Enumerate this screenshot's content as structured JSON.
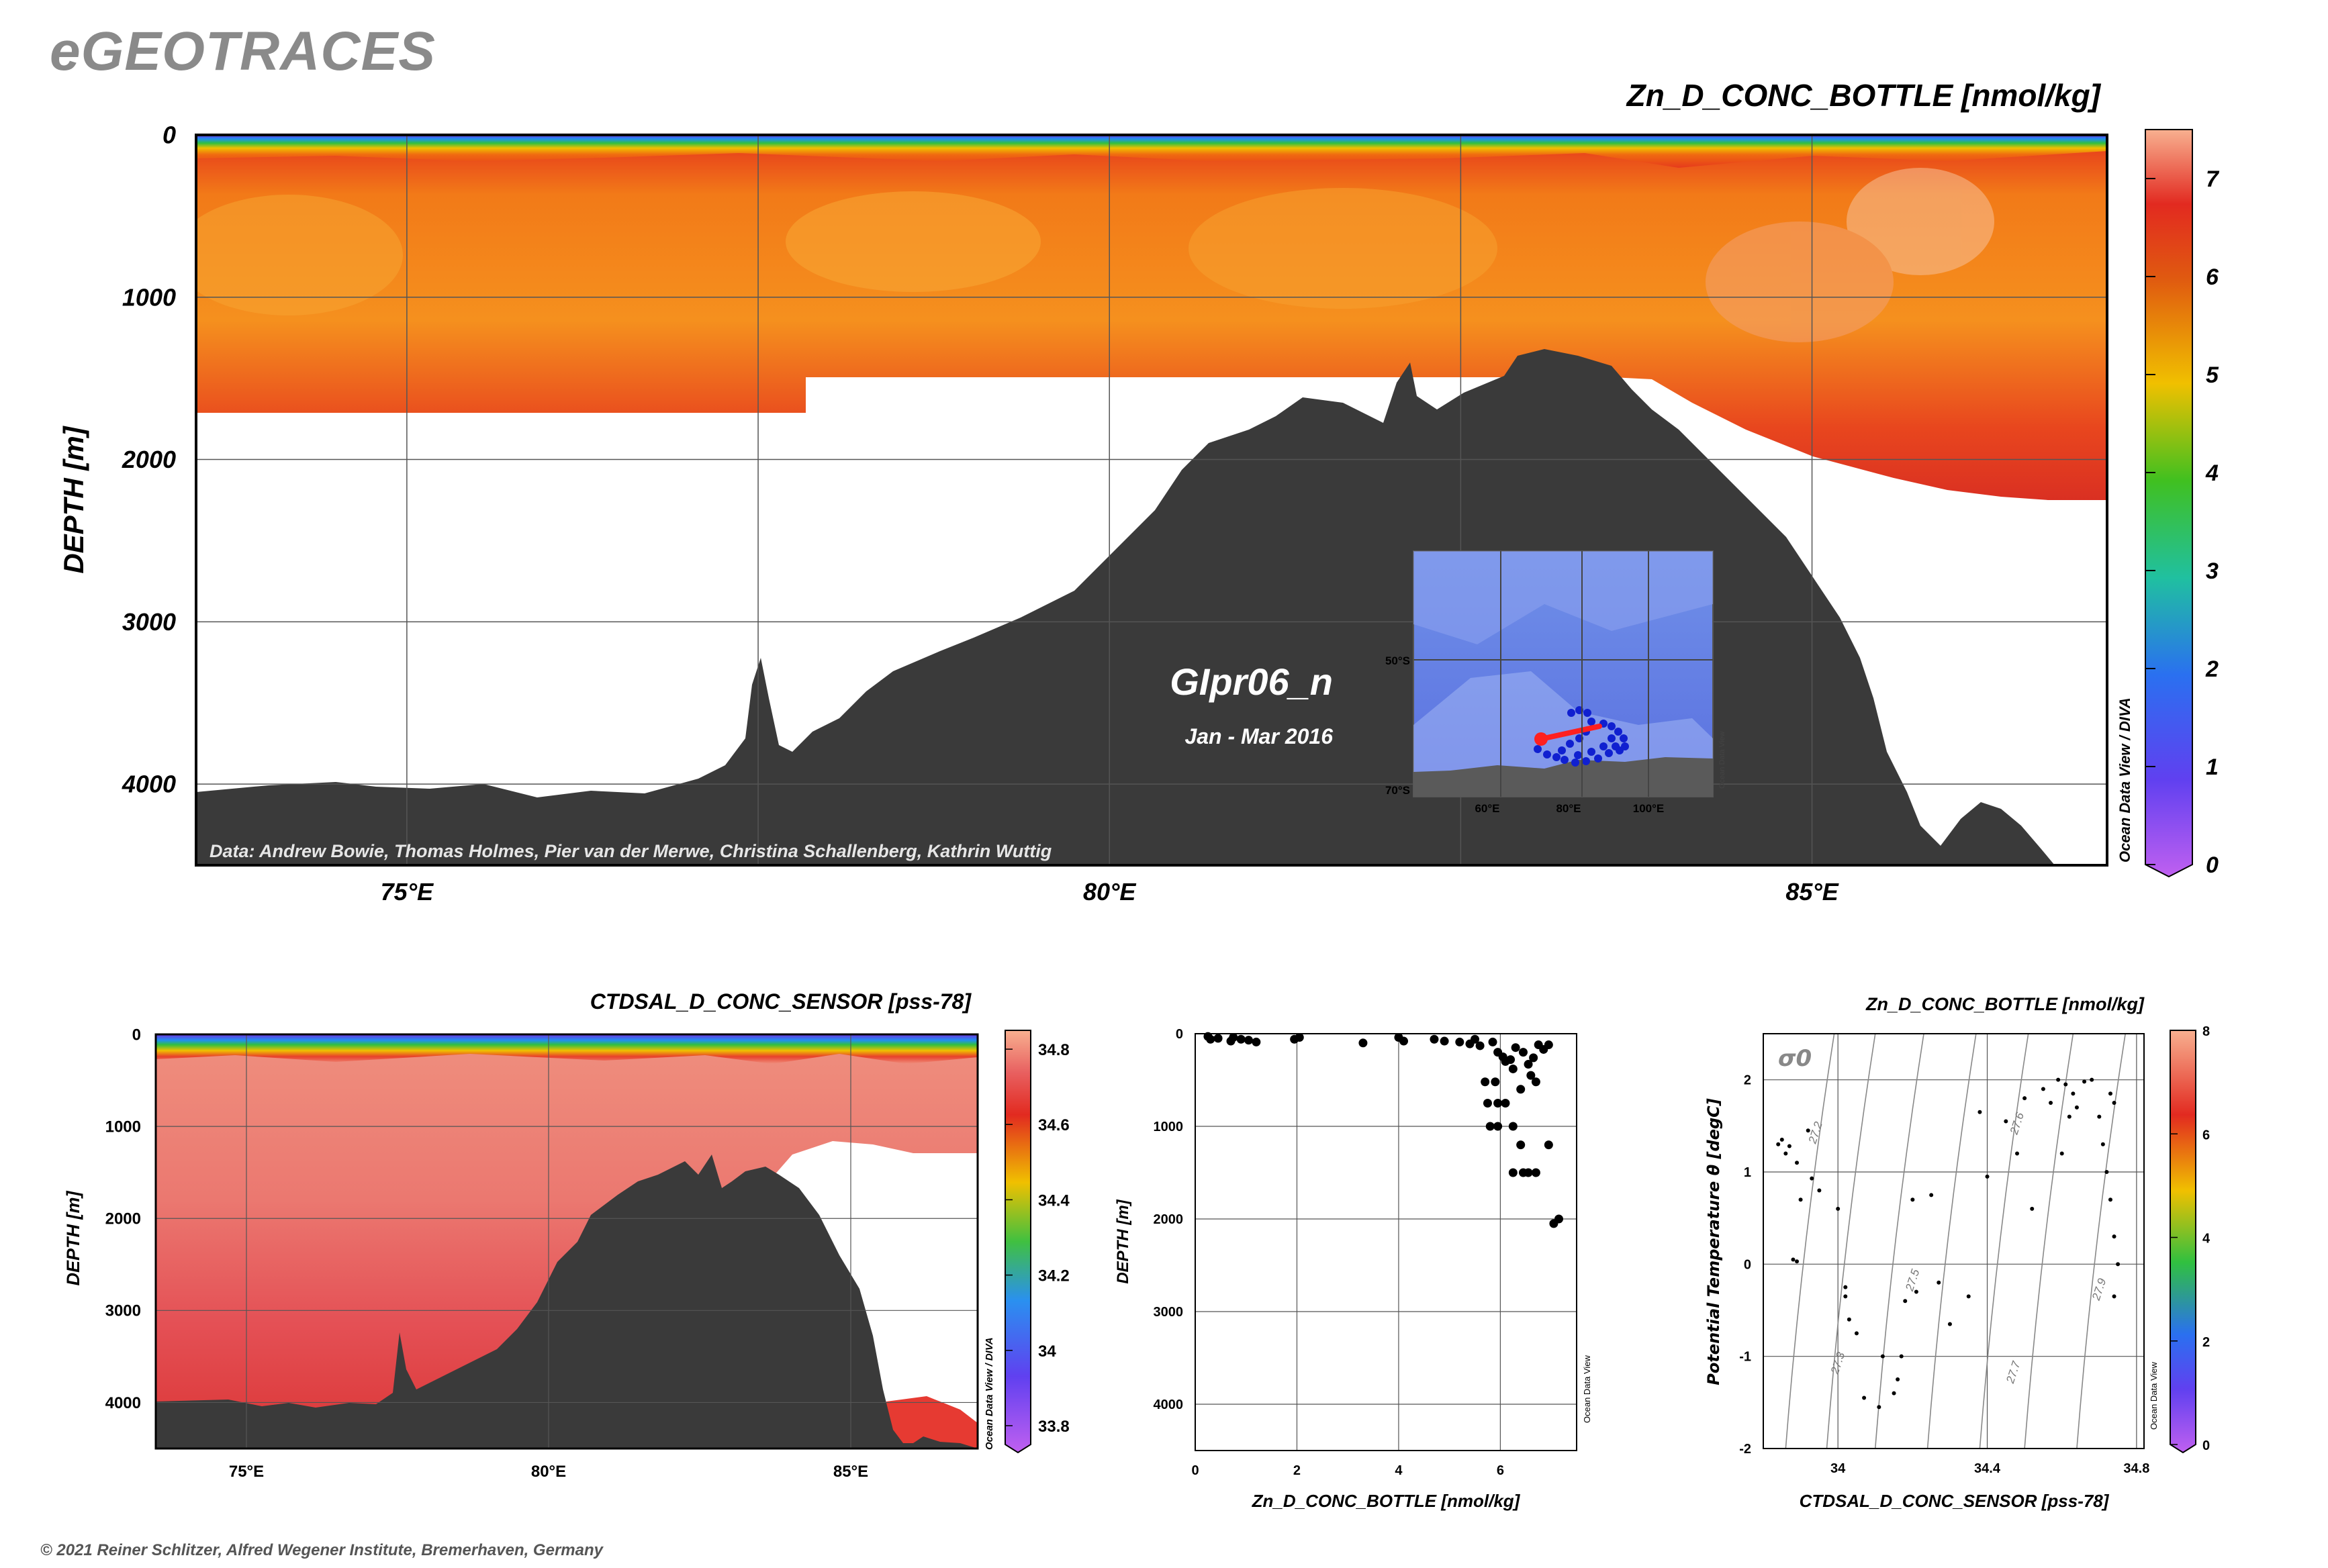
{
  "app_title": "eGEOTRACES",
  "copyright": "© 2021 Reiner Schlitzer, Alfred Wegener Institute, Bremerhaven, Germany",
  "chart_data": [
    {
      "type": "heatmap",
      "title": "Zn_D_CONC_BOTTLE [nmol/kg]",
      "ylabel": "DEPTH [m]",
      "xlabel": "",
      "x_ticks": [
        "75°E",
        "80°E",
        "85°E"
      ],
      "y_ticks": [
        "0",
        "1000",
        "2000",
        "3000",
        "4000"
      ],
      "xlim": [
        73.5,
        87.1
      ],
      "ylim": [
        4500,
        0
      ],
      "grid": true,
      "cruise_label": "GIpr06_n",
      "period_label": "Jan - Mar 2016",
      "data_credit": "Data: Andrew Bowie, Thomas Holmes, Pier van der Merwe, Christina Schallenberg, Kathrin Wuttig",
      "watermark": "Ocean Data View / DIVA",
      "colorbar": {
        "ticks": [
          "0",
          "1",
          "2",
          "3",
          "4",
          "5",
          "6",
          "7"
        ],
        "range": [
          0,
          7.5
        ]
      },
      "inset_map": {
        "lat_labels": [
          "50°S",
          "70°S"
        ],
        "lon_labels": [
          "60°E",
          "80°E",
          "100°E"
        ],
        "station_color": "#1020d0",
        "section_color": "#ff2020",
        "watermark": "Ocean Data View"
      }
    },
    {
      "type": "heatmap",
      "title": "CTDSAL_D_CONC_SENSOR [pss-78]",
      "ylabel": "DEPTH [m]",
      "x_ticks": [
        "75°E",
        "80°E",
        "85°E"
      ],
      "y_ticks": [
        "0",
        "1000",
        "2000",
        "3000",
        "4000"
      ],
      "xlim": [
        73.5,
        87.1
      ],
      "ylim": [
        4500,
        0
      ],
      "watermark": "Ocean Data View / DIVA",
      "colorbar": {
        "ticks": [
          "34.8",
          "34.6",
          "34.4",
          "34.2",
          "34",
          "33.8"
        ],
        "range": [
          33.75,
          34.85
        ]
      }
    },
    {
      "type": "scatter",
      "xlabel": "Zn_D_CONC_BOTTLE [nmol/kg]",
      "ylabel": "DEPTH [m]",
      "x_ticks": [
        "0",
        "2",
        "4",
        "6"
      ],
      "y_ticks": [
        "0",
        "1000",
        "2000",
        "3000",
        "4000"
      ],
      "xlim": [
        0,
        7.5
      ],
      "ylim": [
        4500,
        0
      ],
      "watermark": "Ocean Data View",
      "points": [
        [
          0.25,
          30
        ],
        [
          0.3,
          60
        ],
        [
          0.45,
          50
        ],
        [
          0.7,
          80
        ],
        [
          0.75,
          40
        ],
        [
          0.9,
          60
        ],
        [
          1.05,
          70
        ],
        [
          1.2,
          90
        ],
        [
          1.95,
          60
        ],
        [
          2.05,
          40
        ],
        [
          3.3,
          100
        ],
        [
          4.0,
          40
        ],
        [
          4.1,
          80
        ],
        [
          4.7,
          60
        ],
        [
          4.9,
          80
        ],
        [
          5.2,
          90
        ],
        [
          5.4,
          110
        ],
        [
          5.5,
          60
        ],
        [
          5.6,
          130
        ],
        [
          5.85,
          90
        ],
        [
          5.95,
          200
        ],
        [
          6.05,
          250
        ],
        [
          6.1,
          300
        ],
        [
          6.2,
          280
        ],
        [
          6.25,
          380
        ],
        [
          6.3,
          150
        ],
        [
          6.45,
          200
        ],
        [
          6.55,
          330
        ],
        [
          6.65,
          260
        ],
        [
          6.75,
          120
        ],
        [
          6.85,
          170
        ],
        [
          6.95,
          120
        ],
        [
          6.6,
          450
        ],
        [
          6.7,
          520
        ],
        [
          6.4,
          600
        ],
        [
          5.7,
          520
        ],
        [
          5.9,
          520
        ],
        [
          5.75,
          750
        ],
        [
          5.95,
          750
        ],
        [
          5.8,
          1000
        ],
        [
          5.95,
          1000
        ],
        [
          6.1,
          750
        ],
        [
          6.25,
          1000
        ],
        [
          6.4,
          1200
        ],
        [
          6.95,
          1200
        ],
        [
          6.45,
          1500
        ],
        [
          6.55,
          1500
        ],
        [
          6.25,
          1500
        ],
        [
          6.7,
          1500
        ],
        [
          7.05,
          2050
        ],
        [
          7.15,
          2000
        ]
      ]
    },
    {
      "type": "scatter",
      "title": "Zn_D_CONC_BOTTLE [nmol/kg]",
      "xlabel": "CTDSAL_D_CONC_SENSOR [pss-78]",
      "ylabel": "Potential Temperature θ [degC]",
      "x_ticks": [
        "34",
        "34.4",
        "34.8"
      ],
      "y_ticks": [
        "-2",
        "-1",
        "0",
        "1",
        "2"
      ],
      "xlim": [
        33.8,
        34.82
      ],
      "ylim": [
        -2,
        2.5
      ],
      "density_label": "σ0",
      "isopycnal_labels": [
        "27.2",
        "27.3",
        "27.5",
        "27.6",
        "27.7",
        "27.9"
      ],
      "watermark": "Ocean Data View",
      "colorbar": {
        "ticks": [
          "8",
          "6",
          "4",
          "2",
          "0"
        ],
        "range": [
          0,
          8
        ]
      },
      "points": [
        [
          33.84,
          1.3,
          6.9
        ],
        [
          33.86,
          1.2,
          6.5
        ],
        [
          33.85,
          1.35,
          6.7
        ],
        [
          33.87,
          1.28,
          6.2
        ],
        [
          33.89,
          1.1,
          5.6
        ],
        [
          33.92,
          1.45,
          6.0
        ],
        [
          33.88,
          0.05,
          5.2
        ],
        [
          33.89,
          0.03,
          5.0
        ],
        [
          33.9,
          0.7,
          5.7
        ],
        [
          33.93,
          0.93,
          6.1
        ],
        [
          33.95,
          0.8,
          6.3
        ],
        [
          34.0,
          0.6,
          6.4
        ],
        [
          34.02,
          -0.25,
          6.6
        ],
        [
          34.02,
          -0.35,
          6.5
        ],
        [
          34.03,
          -0.6,
          6.2
        ],
        [
          34.05,
          -0.75,
          6.0
        ],
        [
          34.07,
          -1.45,
          5.8
        ],
        [
          34.11,
          -1.55,
          5.6
        ],
        [
          34.12,
          -1.0,
          6.3
        ],
        [
          34.15,
          -1.4,
          6.0
        ],
        [
          34.16,
          -1.25,
          6.1
        ],
        [
          34.17,
          -1.0,
          6.2
        ],
        [
          34.18,
          -0.4,
          6.4
        ],
        [
          34.2,
          0.7,
          6.5
        ],
        [
          34.21,
          -0.3,
          6.6
        ],
        [
          34.25,
          0.75,
          6.8
        ],
        [
          34.27,
          -0.2,
          6.7
        ],
        [
          34.3,
          -0.65,
          6.3
        ],
        [
          34.35,
          -0.35,
          6.4
        ],
        [
          34.38,
          1.65,
          6.6
        ],
        [
          34.4,
          0.95,
          6.5
        ],
        [
          34.45,
          1.55,
          6.9
        ],
        [
          34.48,
          1.2,
          7.0
        ],
        [
          34.5,
          1.8,
          7.1
        ],
        [
          34.52,
          0.6,
          6.8
        ],
        [
          34.55,
          1.9,
          7.2
        ],
        [
          34.57,
          1.75,
          7.0
        ],
        [
          34.59,
          2.0,
          7.3
        ],
        [
          34.61,
          1.95,
          7.1
        ],
        [
          34.63,
          1.85,
          7.0
        ],
        [
          34.64,
          1.7,
          6.9
        ],
        [
          34.66,
          1.98,
          7.1
        ],
        [
          34.68,
          2.0,
          7.2
        ],
        [
          34.7,
          1.6,
          6.8
        ],
        [
          34.71,
          1.3,
          6.7
        ],
        [
          34.72,
          1.0,
          6.6
        ],
        [
          34.73,
          0.7,
          6.5
        ],
        [
          34.74,
          0.3,
          6.6
        ],
        [
          34.75,
          0.0,
          6.7
        ],
        [
          34.74,
          -0.35,
          6.8
        ],
        [
          34.73,
          1.85,
          7.0
        ],
        [
          34.74,
          1.75,
          6.9
        ],
        [
          34.6,
          1.2,
          6.7
        ],
        [
          34.62,
          1.6,
          6.9
        ]
      ]
    }
  ]
}
